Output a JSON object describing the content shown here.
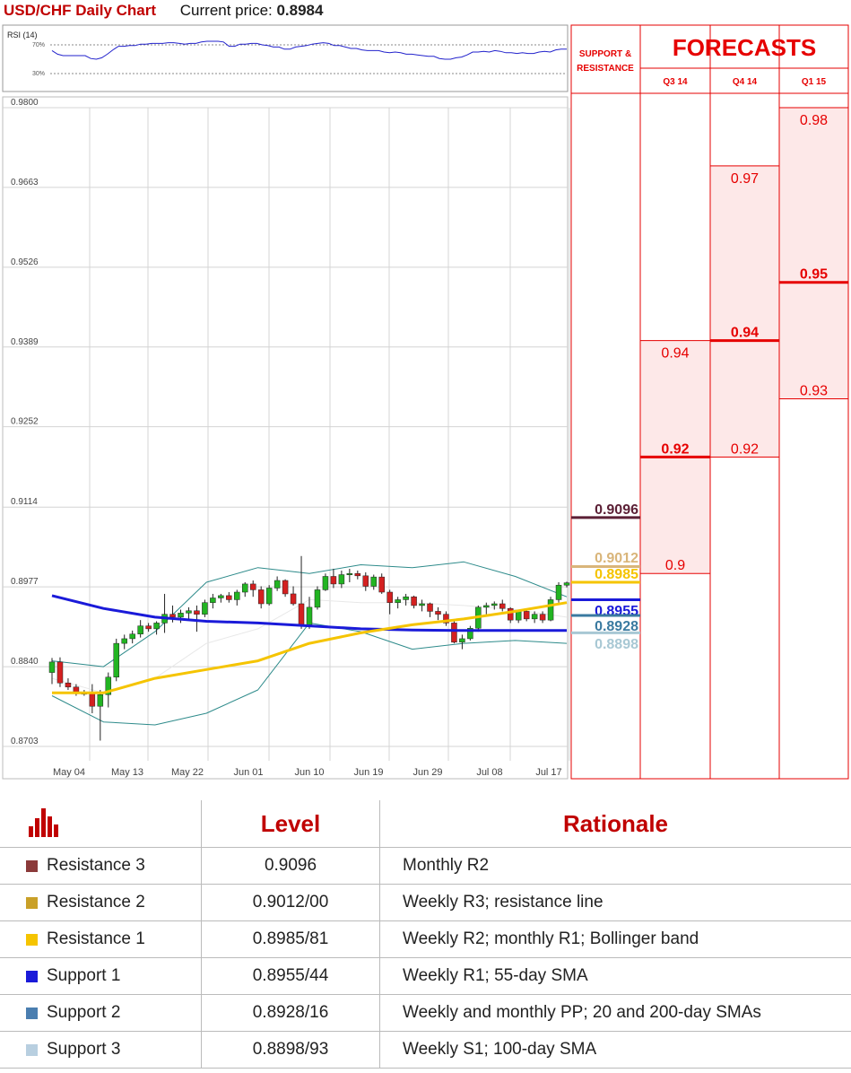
{
  "header": {
    "pair_title": "USD/CHF Daily Chart",
    "price_label": "Current price: ",
    "price_value": "0.8984"
  },
  "rsi": {
    "label": "RSI (14)",
    "upper": "70%",
    "lower": "30%",
    "values": [
      62,
      57,
      55,
      55,
      55,
      55,
      55,
      51,
      50,
      52,
      57,
      63,
      68,
      68,
      69,
      69,
      71,
      71,
      72,
      72,
      72,
      73,
      73,
      72,
      71,
      72,
      72,
      74,
      75,
      75,
      75,
      74,
      68,
      68,
      71,
      71,
      72,
      72,
      70,
      69,
      67,
      67,
      64,
      64,
      67,
      68,
      69,
      71,
      72,
      73,
      72,
      69,
      69,
      67,
      65,
      65,
      63,
      62,
      62,
      62,
      60,
      59,
      60,
      59,
      57,
      57,
      56,
      55,
      54,
      54,
      51,
      50,
      50,
      52,
      53,
      56,
      60,
      60,
      61,
      60,
      62,
      61,
      59,
      59,
      58,
      59,
      58,
      58,
      60,
      61,
      60,
      63,
      64,
      64
    ]
  },
  "panel": {
    "sr_title_line1": "SUPPORT &",
    "sr_title_line2": "RESISTANCE",
    "forecasts_title": "FORECASTS",
    "quarters": [
      "Q3 14",
      "Q4 14",
      "Q1 15"
    ],
    "sr_levels": [
      {
        "value": 0.9096,
        "label": "0.9096",
        "color": "#5b1f35"
      },
      {
        "value": 0.9012,
        "label": "0.9012",
        "color": "#d9b57a"
      },
      {
        "value": 0.8985,
        "label": "0.8985",
        "color": "#f5c400"
      },
      {
        "value": 0.8955,
        "label": "0.8955",
        "color": "#1a1ad9"
      },
      {
        "value": 0.8928,
        "label": "0.8928",
        "color": "#3a7aa0"
      },
      {
        "value": 0.8898,
        "label": "0.8898",
        "color": "#a8c8d4"
      }
    ],
    "forecasts": [
      {
        "quarter": "Q3 14",
        "high": 0.94,
        "median": 0.92,
        "low": 0.9,
        "high_label": "0.94",
        "median_label": "0.92",
        "low_label": "0.9"
      },
      {
        "quarter": "Q4 14",
        "high": 0.97,
        "median": 0.94,
        "low": 0.92,
        "high_label": "0.97",
        "median_label": "0.94",
        "low_label": "0.92"
      },
      {
        "quarter": "Q1 15",
        "high": 0.98,
        "median": 0.95,
        "low": 0.93,
        "high_label": "0.98",
        "median_label": "0.95",
        "low_label": "0.93"
      }
    ],
    "accent_color": "#e60000",
    "forecast_fill": "#fde8e8"
  },
  "chart_data": {
    "type": "candlestick",
    "title": "USD/CHF Daily Chart",
    "ylim": [
      0.8703,
      0.98
    ],
    "yticks": [
      "0.9800",
      "0.9663",
      "0.9526",
      "0.9389",
      "0.9252",
      "0.9114",
      "0.8977",
      "0.8840",
      "0.8703"
    ],
    "xticks": [
      "May 04",
      "May 13",
      "May 22",
      "Jun 01",
      "Jun 10",
      "Jun 19",
      "Jun 29",
      "Jul 08",
      "Jul 17"
    ],
    "grid": true,
    "candles": [
      [
        0.883,
        0.8855,
        0.881,
        0.8848
      ],
      [
        0.8848,
        0.8856,
        0.8805,
        0.8812
      ],
      [
        0.8812,
        0.882,
        0.88,
        0.8805
      ],
      [
        0.8805,
        0.881,
        0.879,
        0.8795
      ],
      [
        0.8795,
        0.88,
        0.879,
        0.8795
      ],
      [
        0.8795,
        0.881,
        0.876,
        0.8772
      ],
      [
        0.8772,
        0.88,
        0.8713,
        0.8792
      ],
      [
        0.8792,
        0.883,
        0.877,
        0.8822
      ],
      [
        0.8822,
        0.8888,
        0.8815,
        0.888
      ],
      [
        0.888,
        0.8895,
        0.887,
        0.8888
      ],
      [
        0.8888,
        0.8902,
        0.888,
        0.8896
      ],
      [
        0.8896,
        0.892,
        0.889,
        0.891
      ],
      [
        0.891,
        0.8915,
        0.89,
        0.8905
      ],
      [
        0.8905,
        0.8918,
        0.8895,
        0.8915
      ],
      [
        0.8915,
        0.8965,
        0.8898,
        0.893
      ],
      [
        0.893,
        0.8945,
        0.8916,
        0.8925
      ],
      [
        0.8925,
        0.8938,
        0.8915,
        0.8932
      ],
      [
        0.8932,
        0.8942,
        0.892,
        0.8936
      ],
      [
        0.8936,
        0.8945,
        0.89,
        0.893
      ],
      [
        0.893,
        0.8955,
        0.8925,
        0.895
      ],
      [
        0.895,
        0.8965,
        0.894,
        0.8958
      ],
      [
        0.8958,
        0.8965,
        0.895,
        0.8962
      ],
      [
        0.8962,
        0.8968,
        0.895,
        0.8955
      ],
      [
        0.8955,
        0.8972,
        0.8945,
        0.8968
      ],
      [
        0.8968,
        0.8985,
        0.896,
        0.8982
      ],
      [
        0.8982,
        0.8988,
        0.896,
        0.8972
      ],
      [
        0.8972,
        0.8978,
        0.894,
        0.8948
      ],
      [
        0.8948,
        0.898,
        0.8945,
        0.8975
      ],
      [
        0.8975,
        0.8995,
        0.897,
        0.8988
      ],
      [
        0.8988,
        0.899,
        0.896,
        0.8965
      ],
      [
        0.8965,
        0.8978,
        0.8945,
        0.8948
      ],
      [
        0.8948,
        0.903,
        0.8905,
        0.8912
      ],
      [
        0.8912,
        0.896,
        0.8905,
        0.8942
      ],
      [
        0.8942,
        0.8978,
        0.8938,
        0.8972
      ],
      [
        0.8972,
        0.9,
        0.897,
        0.8995
      ],
      [
        0.8995,
        0.9008,
        0.8975,
        0.8982
      ],
      [
        0.8982,
        0.9005,
        0.8975,
        0.8998
      ],
      [
        0.8998,
        0.9008,
        0.8985,
        0.9
      ],
      [
        0.9,
        0.9005,
        0.899,
        0.8996
      ],
      [
        0.8996,
        0.9002,
        0.897,
        0.8978
      ],
      [
        0.8978,
        0.8998,
        0.8972,
        0.8994
      ],
      [
        0.8994,
        0.9,
        0.8965,
        0.8968
      ],
      [
        0.8968,
        0.8972,
        0.893,
        0.895
      ],
      [
        0.895,
        0.896,
        0.894,
        0.8955
      ],
      [
        0.8955,
        0.8965,
        0.8945,
        0.896
      ],
      [
        0.896,
        0.8962,
        0.894,
        0.8945
      ],
      [
        0.8945,
        0.8955,
        0.8935,
        0.8948
      ],
      [
        0.8948,
        0.895,
        0.8925,
        0.8935
      ],
      [
        0.8935,
        0.8942,
        0.892,
        0.893
      ],
      [
        0.893,
        0.8935,
        0.891,
        0.8915
      ],
      [
        0.8915,
        0.8918,
        0.888,
        0.8882
      ],
      [
        0.8882,
        0.8895,
        0.887,
        0.8888
      ],
      [
        0.8888,
        0.891,
        0.8885,
        0.8906
      ],
      [
        0.8906,
        0.8945,
        0.89,
        0.8942
      ],
      [
        0.8942,
        0.895,
        0.893,
        0.8945
      ],
      [
        0.8945,
        0.8952,
        0.8938,
        0.8948
      ],
      [
        0.8948,
        0.8955,
        0.8935,
        0.894
      ],
      [
        0.894,
        0.8942,
        0.8915,
        0.892
      ],
      [
        0.892,
        0.8938,
        0.8915,
        0.8935
      ],
      [
        0.8935,
        0.894,
        0.8918,
        0.8922
      ],
      [
        0.8922,
        0.8935,
        0.8915,
        0.893
      ],
      [
        0.893,
        0.8935,
        0.8915,
        0.892
      ],
      [
        0.892,
        0.896,
        0.8918,
        0.8955
      ],
      [
        0.8955,
        0.8985,
        0.895,
        0.898
      ],
      [
        0.898,
        0.8986,
        0.8976,
        0.8984
      ]
    ],
    "series": [
      {
        "name": "",
        "color": "#1a1ad9",
        "values": [
          0.8962,
          0.894,
          0.8925,
          0.8918,
          0.8915,
          0.891,
          0.8905,
          0.8903,
          0.8902,
          0.8902,
          0.8902
        ]
      },
      {
        "name": "",
        "color": "#f5c400",
        "values": [
          0.8795,
          0.8795,
          0.882,
          0.8835,
          0.885,
          0.888,
          0.8898,
          0.8912,
          0.8922,
          0.8935,
          0.895
        ]
      },
      {
        "name": "",
        "color": "#2e8b8b",
        "values": [
          0.885,
          0.884,
          0.89,
          0.8985,
          0.901,
          0.9,
          0.9015,
          0.901,
          0.902,
          0.8995,
          0.896
        ]
      },
      {
        "name": "",
        "color": "#2e8b8b",
        "values": [
          0.879,
          0.8745,
          0.874,
          0.876,
          0.88,
          0.8915,
          0.89,
          0.887,
          0.888,
          0.8885,
          0.888
        ]
      },
      {
        "name": "",
        "color": "#e8e8e8",
        "values": [
          0.882,
          0.8795,
          0.882,
          0.888,
          0.8905,
          0.8955,
          0.895,
          0.895,
          0.8945,
          0.8938,
          0.8925
        ]
      }
    ]
  },
  "table": {
    "headers": [
      "Level",
      "Rationale"
    ],
    "rows": [
      {
        "name": "Resistance 3",
        "level": "0.9096",
        "rationale": "Monthly R2",
        "color": "#8b3a3a"
      },
      {
        "name": "Resistance 2",
        "level": "0.9012/00",
        "rationale": "Weekly R3; resistance line",
        "color": "#c9a028"
      },
      {
        "name": "Resistance 1",
        "level": "0.8985/81",
        "rationale": "Weekly R2; monthly R1; Bollinger band",
        "color": "#f5c400"
      },
      {
        "name": "Support 1",
        "level": "0.8955/44",
        "rationale": "Weekly R1; 55-day SMA",
        "color": "#1a1ad9"
      },
      {
        "name": "Support 2",
        "level": "0.8928/16",
        "rationale": "Weekly and monthly PP; 20 and 200-day SMAs",
        "color": "#4a7eb0"
      },
      {
        "name": "Support 3",
        "level": "0.8898/93",
        "rationale": "Weekly S1; 100-day SMA",
        "color": "#b8cfe0"
      }
    ]
  }
}
